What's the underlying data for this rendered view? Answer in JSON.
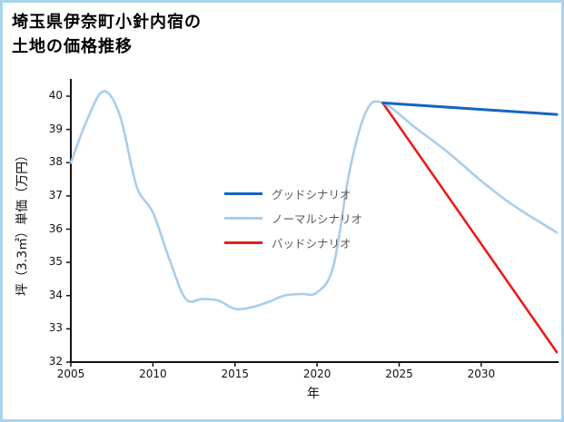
{
  "header": {
    "title_line1": "埼玉県伊奈町小針内宿の",
    "title_line2": "土地の価格推移"
  },
  "colors": {
    "frame_border": "#a9d3ee",
    "axis": "#111111",
    "good": "#1565c0",
    "normal": "#a8cdeb",
    "bad": "#e91c1c",
    "legend_text": "#595959"
  },
  "chart_data": {
    "type": "line",
    "title": "埼玉県伊奈町小針内宿の土地の価格推移",
    "xlabel": "年",
    "ylabel": "坪（3.3㎡）単価（万円）",
    "xlim": [
      2005,
      2034.6
    ],
    "ylim": [
      32,
      40
    ],
    "xticks": [
      2005,
      2010,
      2015,
      2020,
      2025,
      2030
    ],
    "yticks": [
      32,
      33,
      34,
      35,
      36,
      37,
      38,
      39,
      40
    ],
    "grid": false,
    "legend_position": "center",
    "series": [
      {
        "name": "グッドシナリオ",
        "color": "#1565c0",
        "width": 3,
        "x": [
          2024,
          2034.6
        ],
        "y": [
          39.8,
          39.45
        ]
      },
      {
        "name": "ノーマルシナリオ",
        "color": "#a8cdeb",
        "width": 2.6,
        "x": [
          2005,
          2006,
          2007,
          2008,
          2009,
          2010,
          2011,
          2012,
          2013,
          2014,
          2015,
          2016,
          2017,
          2018,
          2019,
          2020,
          2021,
          2022,
          2023,
          2024,
          2026,
          2028,
          2030,
          2032,
          2034.6
        ],
        "y": [
          38.0,
          39.3,
          40.15,
          39.4,
          37.3,
          36.5,
          35.1,
          33.9,
          33.9,
          33.85,
          33.6,
          33.65,
          33.8,
          34.0,
          34.05,
          34.1,
          34.9,
          37.8,
          39.55,
          39.8,
          39.05,
          38.3,
          37.45,
          36.7,
          35.9
        ]
      },
      {
        "name": "バッドシナリオ",
        "color": "#e91c1c",
        "width": 2.6,
        "x": [
          2024,
          2034.6
        ],
        "y": [
          39.8,
          32.3
        ]
      }
    ]
  }
}
